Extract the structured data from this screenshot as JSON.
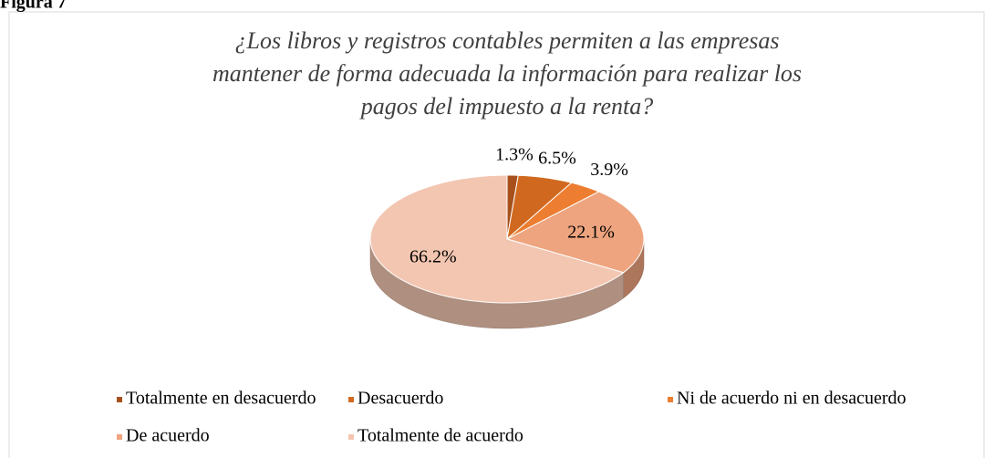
{
  "caption": "Figura 7",
  "chart_data": {
    "type": "pie",
    "title": [
      "¿Los libros y registros contables permiten a las empresas",
      "mantener de forma adecuada la información para realizar los",
      "pagos del impuesto a la renta?"
    ],
    "categories": [
      "Totalmente en desacuerdo",
      "Desacuerdo",
      "Ni de acuerdo ni en desacuerdo",
      "De acuerdo",
      "Totalmente de acuerdo"
    ],
    "values": [
      1.3,
      6.5,
      3.9,
      22.1,
      66.2
    ],
    "value_labels": [
      "1.3%",
      "6.5%",
      "3.9%",
      "22.1%",
      "66.2%"
    ],
    "colors": [
      "#a8501c",
      "#d0691f",
      "#ed7d31",
      "#eea47f",
      "#f3c6b1"
    ],
    "legend": "bottom"
  }
}
